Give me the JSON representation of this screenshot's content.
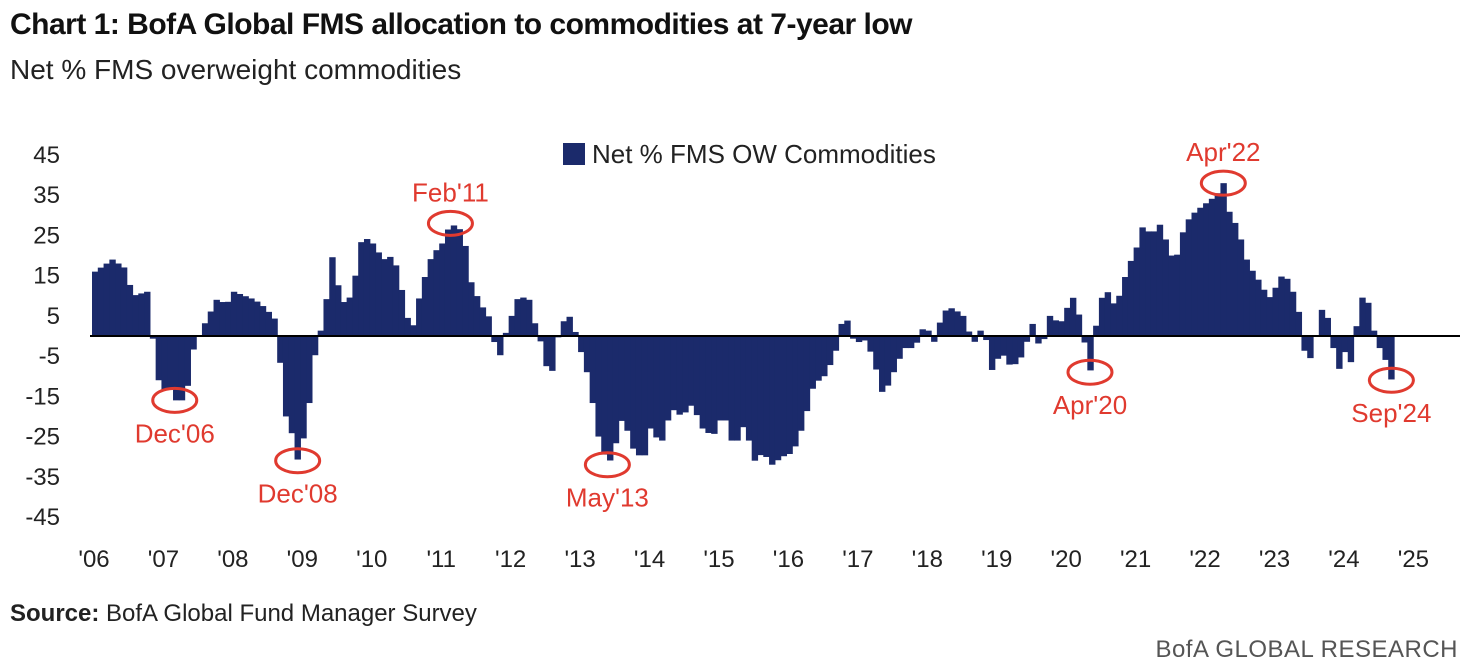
{
  "title": "Chart 1: BofA Global FMS allocation to commodities at 7-year low",
  "subtitle": "Net % FMS overweight commodities",
  "source_label": "Source:",
  "source_text": "BofA Global Fund Manager Survey",
  "brand": "BofA GLOBAL RESEARCH",
  "colors": {
    "bar": "#1b2a6b",
    "annotation": "#e03a2f",
    "axis": "#000000"
  },
  "chart_data": {
    "type": "bar",
    "title": "Chart 1: BofA Global FMS allocation to commodities at 7-year low",
    "subtitle": "Net % FMS overweight commodities",
    "xlabel": "",
    "ylabel": "",
    "ylim": [
      -45,
      45
    ],
    "yticks": [
      45,
      35,
      25,
      15,
      5,
      -5,
      -15,
      -25,
      -35,
      -45
    ],
    "x_start": 2006.0,
    "x_end": 2025.7,
    "xtick_labels": [
      "'06",
      "'07",
      "'08",
      "'09",
      "'10",
      "'11",
      "'12",
      "'13",
      "'14",
      "'15",
      "'16",
      "'17",
      "'18",
      "'19",
      "'20",
      "'21",
      "'22",
      "'23",
      "'24",
      "'25"
    ],
    "legend": "Net % FMS OW Commodities",
    "series": [
      {
        "name": "Net % FMS OW Commodities",
        "keyframes": [
          [
            2006.0,
            16
          ],
          [
            2006.25,
            19
          ],
          [
            2006.42,
            17
          ],
          [
            2006.55,
            10
          ],
          [
            2006.75,
            11
          ],
          [
            2006.85,
            -3
          ],
          [
            2006.95,
            -15
          ],
          [
            2007.05,
            -12
          ],
          [
            2007.15,
            -16
          ],
          [
            2007.3,
            -16
          ],
          [
            2007.42,
            -3
          ],
          [
            2007.55,
            2
          ],
          [
            2007.75,
            9
          ],
          [
            2007.9,
            8
          ],
          [
            2008.0,
            11
          ],
          [
            2008.15,
            10
          ],
          [
            2008.3,
            9
          ],
          [
            2008.45,
            7
          ],
          [
            2008.6,
            4
          ],
          [
            2008.75,
            -20
          ],
          [
            2008.85,
            -25
          ],
          [
            2008.92,
            -31
          ],
          [
            2009.05,
            -22
          ],
          [
            2009.15,
            -6
          ],
          [
            2009.3,
            5
          ],
          [
            2009.42,
            20
          ],
          [
            2009.55,
            8
          ],
          [
            2009.7,
            10
          ],
          [
            2009.85,
            25
          ],
          [
            2010.0,
            23
          ],
          [
            2010.15,
            19
          ],
          [
            2010.3,
            20
          ],
          [
            2010.45,
            9
          ],
          [
            2010.55,
            0
          ],
          [
            2010.7,
            12
          ],
          [
            2010.85,
            20
          ],
          [
            2011.0,
            23
          ],
          [
            2011.12,
            28
          ],
          [
            2011.3,
            26
          ],
          [
            2011.42,
            13
          ],
          [
            2011.55,
            8
          ],
          [
            2011.7,
            4
          ],
          [
            2011.8,
            -7
          ],
          [
            2011.92,
            1
          ],
          [
            2012.1,
            10
          ],
          [
            2012.25,
            9
          ],
          [
            2012.35,
            2
          ],
          [
            2012.45,
            -3
          ],
          [
            2012.55,
            -12
          ],
          [
            2012.7,
            3
          ],
          [
            2012.85,
            5
          ],
          [
            2012.95,
            -1
          ],
          [
            2013.1,
            -10
          ],
          [
            2013.25,
            -25
          ],
          [
            2013.38,
            -32
          ],
          [
            2013.45,
            -30
          ],
          [
            2013.6,
            -20
          ],
          [
            2013.75,
            -28
          ],
          [
            2013.9,
            -31
          ],
          [
            2014.0,
            -23
          ],
          [
            2014.15,
            -27
          ],
          [
            2014.3,
            -18
          ],
          [
            2014.45,
            -20
          ],
          [
            2014.6,
            -17
          ],
          [
            2014.75,
            -23
          ],
          [
            2014.9,
            -25
          ],
          [
            2015.05,
            -19
          ],
          [
            2015.2,
            -28
          ],
          [
            2015.35,
            -22
          ],
          [
            2015.5,
            -31
          ],
          [
            2015.62,
            -29
          ],
          [
            2015.75,
            -32
          ],
          [
            2015.9,
            -30
          ],
          [
            2016.05,
            -29
          ],
          [
            2016.2,
            -22
          ],
          [
            2016.35,
            -12
          ],
          [
            2016.5,
            -10
          ],
          [
            2016.65,
            -5
          ],
          [
            2016.75,
            3
          ],
          [
            2016.85,
            4
          ],
          [
            2016.95,
            -3
          ],
          [
            2017.05,
            0
          ],
          [
            2017.2,
            -5
          ],
          [
            2017.35,
            -15
          ],
          [
            2017.5,
            -9
          ],
          [
            2017.65,
            -3
          ],
          [
            2017.8,
            -3
          ],
          [
            2017.95,
            3
          ],
          [
            2018.1,
            -2
          ],
          [
            2018.2,
            6
          ],
          [
            2018.35,
            7
          ],
          [
            2018.5,
            5
          ],
          [
            2018.65,
            -2
          ],
          [
            2018.8,
            3
          ],
          [
            2018.9,
            -9
          ],
          [
            2019.05,
            -4
          ],
          [
            2019.2,
            -8
          ],
          [
            2019.35,
            -5
          ],
          [
            2019.5,
            3
          ],
          [
            2019.62,
            -4
          ],
          [
            2019.75,
            5
          ],
          [
            2019.9,
            3
          ],
          [
            2020.0,
            7
          ],
          [
            2020.1,
            10
          ],
          [
            2020.2,
            3
          ],
          [
            2020.33,
            -9
          ],
          [
            2020.45,
            7
          ],
          [
            2020.55,
            12
          ],
          [
            2020.7,
            7
          ],
          [
            2020.8,
            13
          ],
          [
            2020.9,
            18
          ],
          [
            2021.0,
            22
          ],
          [
            2021.1,
            28
          ],
          [
            2021.2,
            25
          ],
          [
            2021.35,
            28
          ],
          [
            2021.45,
            22
          ],
          [
            2021.55,
            18
          ],
          [
            2021.7,
            28
          ],
          [
            2021.85,
            31
          ],
          [
            2022.0,
            33
          ],
          [
            2022.15,
            35
          ],
          [
            2022.25,
            38
          ],
          [
            2022.33,
            31
          ],
          [
            2022.45,
            27
          ],
          [
            2022.6,
            18
          ],
          [
            2022.75,
            14
          ],
          [
            2022.85,
            11
          ],
          [
            2022.95,
            9
          ],
          [
            2023.05,
            15
          ],
          [
            2023.2,
            14
          ],
          [
            2023.35,
            5
          ],
          [
            2023.45,
            -8
          ],
          [
            2023.55,
            -3
          ],
          [
            2023.62,
            3
          ],
          [
            2023.7,
            9
          ],
          [
            2023.8,
            0
          ],
          [
            2023.9,
            -9
          ],
          [
            2024.0,
            -4
          ],
          [
            2024.1,
            -7
          ],
          [
            2024.22,
            10
          ],
          [
            2024.35,
            8
          ],
          [
            2024.45,
            -2
          ],
          [
            2024.55,
            -4
          ],
          [
            2024.67,
            -11
          ]
        ]
      }
    ],
    "annotations": [
      {
        "label": "Dec'06",
        "x": 2007.15,
        "y": -16,
        "label_pos": "below"
      },
      {
        "label": "Dec'08",
        "x": 2008.92,
        "y": -31,
        "label_pos": "below"
      },
      {
        "label": "Feb'11",
        "x": 2011.12,
        "y": 28,
        "label_pos": "above"
      },
      {
        "label": "May'13",
        "x": 2013.38,
        "y": -32,
        "label_pos": "below"
      },
      {
        "label": "Apr'20",
        "x": 2020.33,
        "y": -9,
        "label_pos": "below"
      },
      {
        "label": "Apr'22",
        "x": 2022.25,
        "y": 38,
        "label_pos": "above"
      },
      {
        "label": "Sep'24",
        "x": 2024.67,
        "y": -11,
        "label_pos": "below"
      }
    ]
  }
}
